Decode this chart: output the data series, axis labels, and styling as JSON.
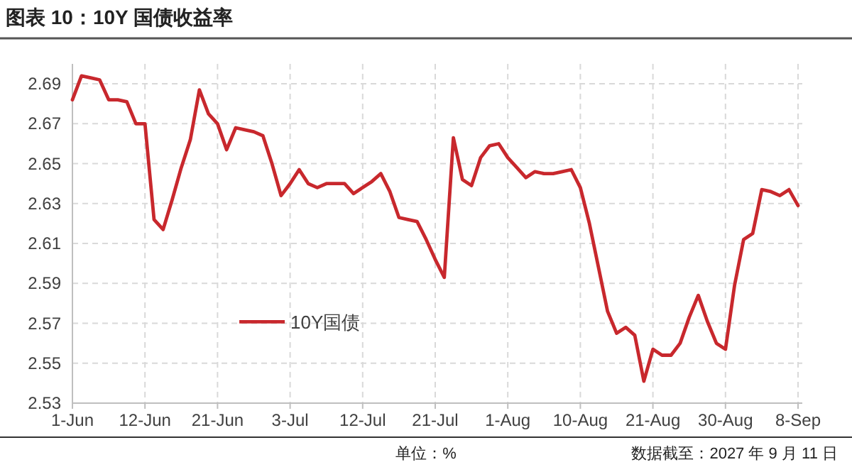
{
  "chart_data": {
    "type": "line",
    "title": "图表 10：10Y 国债收益率",
    "annotations": [
      "单位：%",
      "数据截至：2027 年 9 月 11 日"
    ],
    "categories": [
      "1-Jun",
      null,
      null,
      null,
      null,
      null,
      null,
      null,
      "12-Jun",
      null,
      null,
      null,
      null,
      null,
      null,
      null,
      "21-Jun",
      null,
      null,
      null,
      null,
      null,
      null,
      null,
      "3-Jul",
      null,
      null,
      null,
      null,
      null,
      null,
      null,
      "12-Jul",
      null,
      null,
      null,
      null,
      null,
      null,
      null,
      "21-Jul",
      null,
      null,
      null,
      null,
      null,
      null,
      null,
      "1-Aug",
      null,
      null,
      null,
      null,
      null,
      null,
      null,
      "10-Aug",
      null,
      null,
      null,
      null,
      null,
      null,
      null,
      "21-Aug",
      null,
      null,
      null,
      null,
      null,
      null,
      null,
      "30-Aug",
      null,
      null,
      null,
      null,
      null,
      null,
      null,
      "8-Sep"
    ],
    "series": [
      {
        "name": "10Y国债",
        "color": "#c8282d",
        "values": [
          2.682,
          2.694,
          2.693,
          2.692,
          2.682,
          2.682,
          2.681,
          2.67,
          2.67,
          2.622,
          2.617,
          2.632,
          2.648,
          2.662,
          2.687,
          2.675,
          2.67,
          2.657,
          2.668,
          2.667,
          2.666,
          2.664,
          2.65,
          2.634,
          2.64,
          2.647,
          2.64,
          2.638,
          2.64,
          2.64,
          2.64,
          2.635,
          2.638,
          2.641,
          2.645,
          2.636,
          2.623,
          2.622,
          2.621,
          2.612,
          2.602,
          2.593,
          2.663,
          2.642,
          2.639,
          2.653,
          2.659,
          2.66,
          2.653,
          2.648,
          2.643,
          2.646,
          2.645,
          2.645,
          2.646,
          2.647,
          2.638,
          2.62,
          2.598,
          2.576,
          2.565,
          2.568,
          2.564,
          2.541,
          2.557,
          2.554,
          2.554,
          2.56,
          2.573,
          2.584,
          2.571,
          2.56,
          2.557,
          2.589,
          2.612,
          2.615,
          2.637,
          2.636,
          2.634,
          2.637,
          2.629
        ]
      }
    ],
    "ylim": [
      2.53,
      2.7
    ],
    "yticks": [
      2.53,
      2.55,
      2.57,
      2.59,
      2.61,
      2.63,
      2.65,
      2.67,
      2.69
    ],
    "grid": true,
    "legend": "bottom left"
  }
}
